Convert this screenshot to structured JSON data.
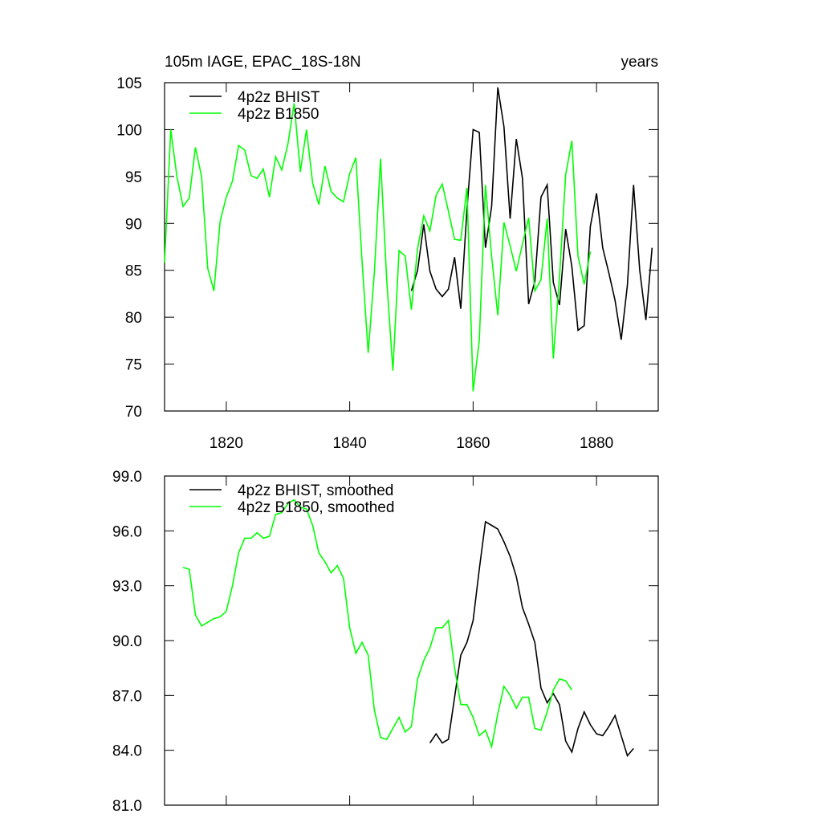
{
  "chart_data": [
    {
      "type": "line",
      "title": "105m IAGE, EPAC_18S-18N",
      "subtitle": "years",
      "xlim": [
        1810,
        1890
      ],
      "xticks": [
        1820,
        1840,
        1860,
        1880
      ],
      "ylim": [
        70,
        105
      ],
      "yticks": [
        70,
        75,
        80,
        85,
        90,
        95,
        100,
        105
      ],
      "series": [
        {
          "name": "4p2z BHIST",
          "color": "#000000",
          "x": [
            1850,
            1851,
            1852,
            1853,
            1854,
            1855,
            1856,
            1857,
            1858,
            1859,
            1860,
            1861,
            1862,
            1863,
            1864,
            1865,
            1866,
            1867,
            1868,
            1869,
            1870,
            1871,
            1872,
            1873,
            1874,
            1875,
            1876,
            1877,
            1878,
            1879,
            1880,
            1881,
            1882,
            1883,
            1884,
            1885,
            1886,
            1887,
            1888,
            1889
          ],
          "values": [
            82.8,
            85,
            89.9,
            84.9,
            83,
            82.2,
            83,
            86.4,
            80.9,
            91.5,
            100,
            99.7,
            87.4,
            91.8,
            104.5,
            100.3,
            90.5,
            99,
            94.8,
            81.4,
            83.8,
            92.8,
            94.1,
            83.7,
            81.3,
            89.4,
            85.4,
            78.6,
            79.1,
            89.7,
            93.2,
            87.4,
            84.7,
            81.8,
            77.6,
            83.4,
            94.1,
            85,
            79.7,
            87.4
          ]
        },
        {
          "name": "4p2z B1850",
          "color": "#00ff00",
          "x": [
            1810,
            1811,
            1812,
            1813,
            1814,
            1815,
            1816,
            1817,
            1818,
            1819,
            1820,
            1821,
            1822,
            1823,
            1824,
            1825,
            1826,
            1827,
            1828,
            1829,
            1830,
            1831,
            1832,
            1833,
            1834,
            1835,
            1836,
            1837,
            1838,
            1839,
            1840,
            1841,
            1842,
            1843,
            1844,
            1845,
            1846,
            1847,
            1848,
            1849,
            1850,
            1851,
            1852,
            1853,
            1854,
            1855,
            1856,
            1857,
            1858,
            1859,
            1860,
            1861,
            1862,
            1863,
            1864,
            1865,
            1866,
            1867,
            1868,
            1869,
            1870,
            1871,
            1872,
            1873,
            1874,
            1875,
            1876,
            1877,
            1878,
            1879
          ],
          "values": [
            85.8,
            100,
            95,
            91.8,
            92.7,
            98.1,
            95,
            85.2,
            82.8,
            90.2,
            92.8,
            94.5,
            98.3,
            97.8,
            95.1,
            94.8,
            95.8,
            92.8,
            97.1,
            95.7,
            98.5,
            102.8,
            95.5,
            100,
            94.3,
            92,
            96.1,
            93.4,
            92.7,
            92.3,
            95.3,
            97,
            86,
            76.2,
            84.8,
            96.9,
            84,
            74.3,
            87.1,
            86.5,
            80.8,
            87.3,
            90.8,
            89.2,
            93,
            94.2,
            91.3,
            88.3,
            88.2,
            93.8,
            72.1,
            77.5,
            94.1,
            86.5,
            80.2,
            90.1,
            87.6,
            84.9,
            87.8,
            90.6,
            82.8,
            84,
            90.5,
            75.6,
            84.3,
            95.2,
            98.8,
            86.5,
            83.5,
            87
          ]
        }
      ]
    },
    {
      "type": "line",
      "xlim": [
        1810,
        1890
      ],
      "xticks": [
        1820,
        1840,
        1860,
        1880
      ],
      "ylim": [
        81,
        99
      ],
      "yticks": [
        {
          "value": 81,
          "label": "81.0"
        },
        {
          "value": 84,
          "label": "84.0"
        },
        {
          "value": 87,
          "label": "87.0"
        },
        {
          "value": 90,
          "label": "90.0"
        },
        {
          "value": 93,
          "label": "93.0"
        },
        {
          "value": 96,
          "label": "96.0"
        },
        {
          "value": 99,
          "label": "99.0"
        }
      ],
      "series": [
        {
          "name": "4p2z BHIST, smoothed",
          "color": "#000000",
          "x": [
            1853,
            1854,
            1855,
            1856,
            1857,
            1858,
            1859,
            1860,
            1861,
            1862,
            1863,
            1864,
            1865,
            1866,
            1867,
            1868,
            1869,
            1870,
            1871,
            1872,
            1873,
            1874,
            1875,
            1876,
            1877,
            1878,
            1879,
            1880,
            1881,
            1882,
            1883,
            1884,
            1885,
            1886
          ],
          "values": [
            84.4,
            84.9,
            84.4,
            84.6,
            86.9,
            89.2,
            89.9,
            91.1,
            93.9,
            96.5,
            96.3,
            96.1,
            95.4,
            94.6,
            93.5,
            91.8,
            90.9,
            89.9,
            87.4,
            86.6,
            87.1,
            86.5,
            84.5,
            83.9,
            85.2,
            86.1,
            85.4,
            84.9,
            84.8,
            85.3,
            85.9,
            84.8,
            83.7,
            84.1
          ]
        },
        {
          "name": "4p2z B1850, smoothed",
          "color": "#00ff00",
          "x": [
            1813,
            1814,
            1815,
            1816,
            1817,
            1818,
            1819,
            1820,
            1821,
            1822,
            1823,
            1824,
            1825,
            1826,
            1827,
            1828,
            1829,
            1830,
            1831,
            1832,
            1833,
            1834,
            1835,
            1836,
            1837,
            1838,
            1839,
            1840,
            1841,
            1842,
            1843,
            1844,
            1845,
            1846,
            1847,
            1848,
            1849,
            1850,
            1851,
            1852,
            1853,
            1854,
            1855,
            1856,
            1857,
            1858,
            1859,
            1860,
            1861,
            1862,
            1863,
            1864,
            1865,
            1866,
            1867,
            1868,
            1869,
            1870,
            1871,
            1872,
            1873,
            1874,
            1875,
            1876
          ],
          "values": [
            94,
            93.9,
            91.4,
            90.8,
            91,
            91.2,
            91.3,
            91.6,
            93,
            94.8,
            95.6,
            95.6,
            95.9,
            95.6,
            95.7,
            96.9,
            97,
            97.5,
            97.7,
            97.3,
            97.2,
            96.3,
            94.8,
            94.3,
            93.7,
            94.1,
            93.4,
            90.7,
            89.3,
            89.9,
            89.2,
            86.2,
            84.7,
            84.6,
            85.2,
            85.8,
            85,
            85.3,
            87.9,
            88.9,
            89.6,
            90.7,
            90.7,
            91.1,
            88.5,
            86.5,
            86.5,
            85.8,
            84.8,
            85.1,
            84.2,
            86,
            87.5,
            87,
            86.3,
            86.9,
            86.9,
            85.2,
            85.1,
            86.1,
            87.3,
            87.9,
            87.8,
            87.3
          ]
        }
      ]
    }
  ]
}
